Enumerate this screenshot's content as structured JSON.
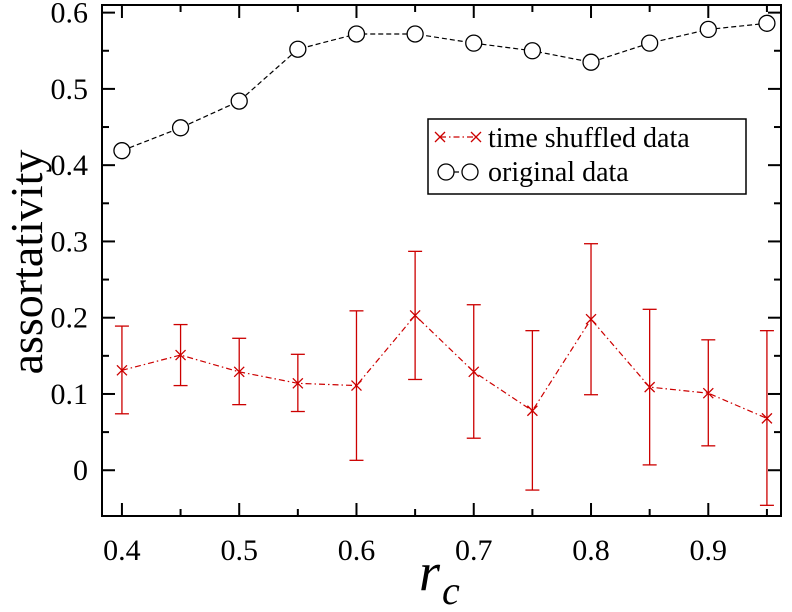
{
  "chart_data": {
    "type": "line",
    "xlabel": "r",
    "xlabel_subscript": "c",
    "ylabel": "assortativity",
    "xlim": [
      0.383,
      0.962
    ],
    "ylim": [
      -0.06,
      0.61
    ],
    "xticks": [
      0.4,
      0.5,
      0.6,
      0.7,
      0.8,
      0.9
    ],
    "xtick_labels": [
      "0.4",
      "0.5",
      "0.6",
      "0.7",
      "0.8",
      "0.9"
    ],
    "xticks_minor": [
      0.45,
      0.55,
      0.65,
      0.75,
      0.85,
      0.95
    ],
    "yticks": [
      0,
      0.1,
      0.2,
      0.3,
      0.4,
      0.5,
      0.6
    ],
    "ytick_labels": [
      "0",
      "0.1",
      "0.2",
      "0.3",
      "0.4",
      "0.5",
      "0.6"
    ],
    "yticks_minor": [
      0.05,
      0.15,
      0.25,
      0.35,
      0.45,
      0.55
    ],
    "x": [
      0.4,
      0.45,
      0.5,
      0.55,
      0.6,
      0.65,
      0.7,
      0.75,
      0.8,
      0.85,
      0.9,
      0.95
    ],
    "legend_position": "upper-right",
    "series": [
      {
        "name": "time shuffled data",
        "color": "#cc0000",
        "marker": "x",
        "linestyle": "dash-dot",
        "values": [
          0.131,
          0.151,
          0.129,
          0.114,
          0.111,
          0.203,
          0.129,
          0.078,
          0.198,
          0.109,
          0.101,
          0.068
        ],
        "err_low": [
          0.074,
          0.111,
          0.086,
          0.077,
          0.013,
          0.119,
          0.042,
          -0.026,
          0.099,
          0.007,
          0.032,
          -0.046
        ],
        "err_high": [
          0.189,
          0.191,
          0.173,
          0.152,
          0.209,
          0.287,
          0.217,
          0.183,
          0.297,
          0.211,
          0.171,
          0.183
        ]
      },
      {
        "name": "original data",
        "color": "#000000",
        "marker": "o",
        "linestyle": "dashed",
        "values": [
          0.419,
          0.449,
          0.484,
          0.552,
          0.572,
          0.572,
          0.56,
          0.55,
          0.535,
          0.56,
          0.578,
          0.586
        ]
      }
    ]
  }
}
